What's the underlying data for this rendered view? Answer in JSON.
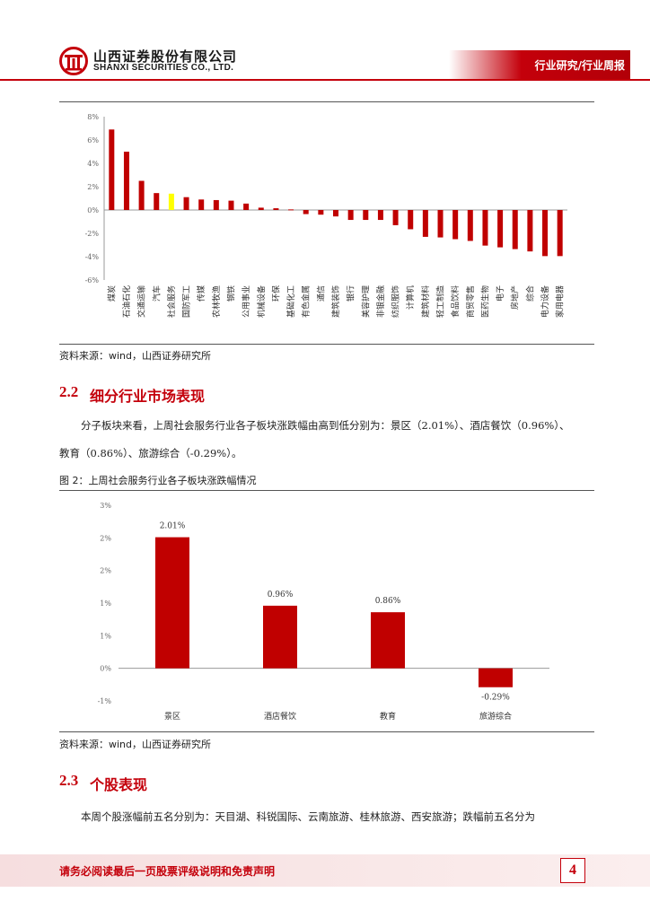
{
  "header": {
    "company_cn": "山西证券股份有限公司",
    "company_en": "SHANXI SECURITIES CO., LTD.",
    "doc_type": "行业研究/行业周报"
  },
  "figure1": {
    "source": "资料来源：wind，山西证券研究所"
  },
  "section_2_2": {
    "number": "2.2",
    "title": "细分行业市场表现",
    "para_line1": "分子板块来看，上周社会服务行业各子板块涨跌幅由高到低分别为：景区（2.01%）、酒店餐饮（0.96%）、",
    "para_line2": "教育（0.86%）、旅游综合（-0.29%）。",
    "figure_caption": "图 2：上周社会服务行业各子板块涨跌幅情况"
  },
  "figure2": {
    "source": "资料来源：wind，山西证券研究所"
  },
  "section_2_3": {
    "number": "2.3",
    "title": "个股表现",
    "para_line1": "本周个股涨幅前五名分别为：天目湖、科锐国际、云南旅游、桂林旅游、西安旅游；跌幅前五名分为"
  },
  "footer": {
    "disclaimer": "请务必阅读最后一页股票评级说明和免责声明",
    "page": "4"
  },
  "colors": {
    "brand_red": "#c4000b",
    "bar_red": "#c00000",
    "highlight_yellow": "#ffff00"
  },
  "chart_data": [
    {
      "type": "bar",
      "categories": [
        "煤炭",
        "石油石化",
        "交通运输",
        "汽车",
        "社会服务",
        "国防军工",
        "传媒",
        "农林牧渔",
        "钢铁",
        "公用事业",
        "机械设备",
        "环保",
        "基础化工",
        "有色金属",
        "通信",
        "建筑装饰",
        "银行",
        "美容护理",
        "非银金融",
        "纺织服饰",
        "计算机",
        "建筑材料",
        "轻工制造",
        "食品饮料",
        "商贸零售",
        "医药生物",
        "电子",
        "房地产",
        "综合",
        "电力设备",
        "家用电器"
      ],
      "values": [
        6.9,
        5.0,
        2.5,
        1.45,
        1.4,
        1.1,
        0.9,
        0.85,
        0.8,
        0.55,
        0.2,
        0.15,
        0.05,
        -0.35,
        -0.4,
        -0.55,
        -0.85,
        -0.85,
        -0.85,
        -1.3,
        -1.65,
        -2.3,
        -2.35,
        -2.5,
        -2.65,
        -3.05,
        -3.2,
        -3.35,
        -3.55,
        -3.95,
        -3.95
      ],
      "highlight_category": "社会服务",
      "y_ticks": [
        "8%",
        "6%",
        "4%",
        "2%",
        "0%",
        "-2%",
        "-4%",
        "-6%"
      ],
      "ylim": [
        -6,
        8
      ],
      "grid": false,
      "legend": "none"
    },
    {
      "type": "bar",
      "categories": [
        "景区",
        "酒店餐饮",
        "教育",
        "旅游综合"
      ],
      "values": [
        2.01,
        0.96,
        0.86,
        -0.29
      ],
      "data_labels": [
        "2.01%",
        "0.96%",
        "0.86%",
        "-0.29%"
      ],
      "y_ticks": [
        "3%",
        "2%",
        "2%",
        "1%",
        "1%",
        "0%",
        "-1%"
      ],
      "y_tick_values": [
        2.5,
        2.0,
        1.5,
        1.0,
        0.5,
        0.0,
        -0.5
      ],
      "ylim": [
        -0.5,
        2.5
      ],
      "grid": false,
      "legend": "none"
    }
  ]
}
